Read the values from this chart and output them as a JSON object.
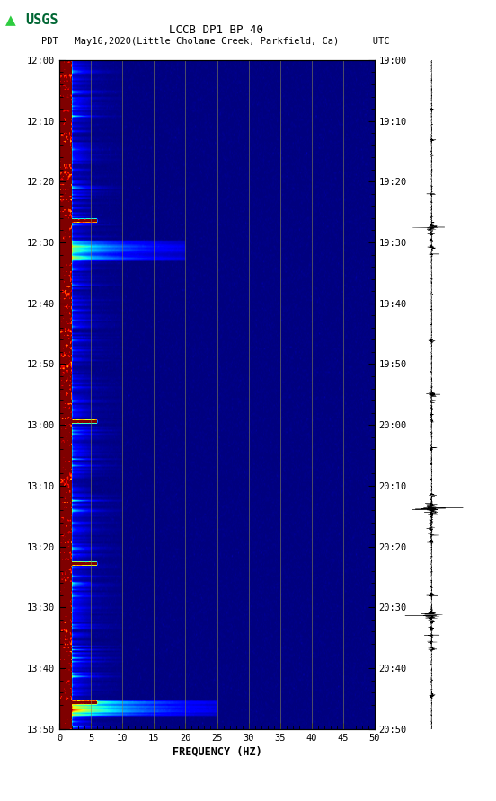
{
  "title_line1": "LCCB DP1 BP 40",
  "title_line2": "PDT   May16,2020(Little Cholame Creek, Parkfield, Ca)      UTC",
  "left_time_labels": [
    "12:00",
    "12:10",
    "12:20",
    "12:30",
    "12:40",
    "12:50",
    "13:00",
    "13:10",
    "13:20",
    "13:30",
    "13:40",
    "13:50"
  ],
  "right_time_labels": [
    "19:00",
    "19:10",
    "19:20",
    "19:30",
    "19:40",
    "19:50",
    "20:00",
    "20:10",
    "20:20",
    "20:30",
    "20:40",
    "20:50"
  ],
  "freq_ticks": [
    0,
    5,
    10,
    15,
    20,
    25,
    30,
    35,
    40,
    45,
    50
  ],
  "freq_label": "FREQUENCY (HZ)",
  "freq_max": 50,
  "bg_color": "white",
  "grid_color": "#888855",
  "seismogram_color": "black",
  "vertical_grid_freqs": [
    5,
    10,
    15,
    20,
    25,
    30,
    35,
    40,
    45
  ],
  "usgs_color": "#006633"
}
